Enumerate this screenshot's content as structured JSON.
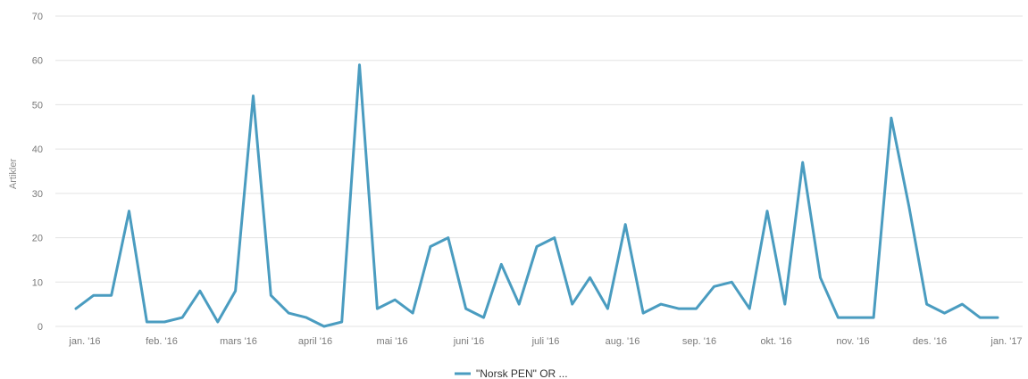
{
  "chart_data": {
    "type": "line",
    "ylabel": "Artikler",
    "ylim": [
      0,
      70
    ],
    "yticks": [
      0,
      10,
      20,
      30,
      40,
      50,
      60,
      70
    ],
    "grid": true,
    "legend_position": "bottom-center",
    "line_color": "#4a9cc0",
    "x_tick_labels": [
      "jan. '16",
      "feb. '16",
      "mars '16",
      "april '16",
      "mai '16",
      "juni '16",
      "juli '16",
      "aug. '16",
      "sep. '16",
      "okt. '16",
      "nov. '16",
      "des. '16",
      "jan. '17"
    ],
    "series": [
      {
        "name": "\"Norsk PEN\" OR ...",
        "values": [
          4,
          7,
          7,
          26,
          1,
          1,
          2,
          8,
          1,
          8,
          52,
          7,
          3,
          2,
          0,
          1,
          59,
          4,
          6,
          3,
          18,
          20,
          4,
          2,
          14,
          5,
          18,
          20,
          5,
          11,
          4,
          23,
          3,
          5,
          4,
          4,
          9,
          10,
          4,
          26,
          5,
          37,
          11,
          2,
          2,
          2,
          47,
          27,
          5,
          3,
          5,
          2,
          2
        ]
      }
    ]
  }
}
